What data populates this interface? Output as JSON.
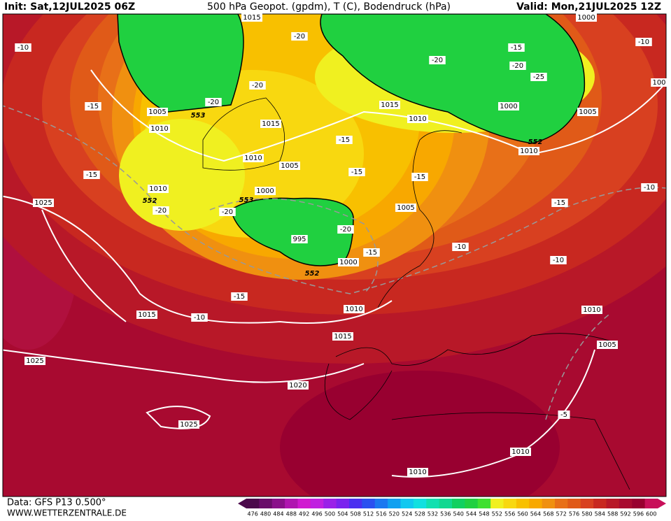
{
  "header": {
    "init": "Init: Sat,12JUL2025 06Z",
    "title": "500 hPa Geopot. (gpdm), T (C), Bodendruck (hPa)",
    "valid": "Valid: Mon,21JUL2025 12Z"
  },
  "footer": {
    "source": "Data: GFS P13 0.500°",
    "site": "WWW.WETTERZENTRALE.DE"
  },
  "colorbar": {
    "labels": [
      476,
      480,
      484,
      488,
      492,
      496,
      500,
      504,
      508,
      512,
      516,
      520,
      524,
      528,
      532,
      536,
      540,
      544,
      548,
      552,
      556,
      560,
      564,
      568,
      572,
      576,
      580,
      584,
      588,
      592,
      596,
      600
    ],
    "colors": [
      "#4b0a4b",
      "#6a0d6a",
      "#8a108a",
      "#b016b0",
      "#d01ad0",
      "#c020e0",
      "#9a20e8",
      "#7a22ee",
      "#4a30f0",
      "#2a50f0",
      "#1a78f0",
      "#10a0f0",
      "#10c8f0",
      "#10e0e0",
      "#10e0b0",
      "#10d890",
      "#10d060",
      "#20d040",
      "#40e030",
      "#f0f020",
      "#f8d810",
      "#f8c000",
      "#f8a800",
      "#f09010",
      "#e87018",
      "#e05a18",
      "#d84020",
      "#c82820",
      "#b81828",
      "#a80a30",
      "#980030",
      "#c8105a"
    ]
  },
  "map": {
    "labels": [
      "1015",
      "-20",
      "-10",
      "1000",
      "-10",
      "-15",
      "-20",
      "-20",
      "-25",
      "-20",
      "100",
      "-15",
      "1005",
      "553",
      "-20",
      "1015",
      "1000",
      "1005",
      "1010",
      "1015",
      "1010",
      "-15",
      "552",
      "1010",
      "1010",
      "1005",
      "-15",
      "-15",
      "-15",
      "1010",
      "1000",
      "552",
      "-20",
      "553",
      "-20",
      "1025",
      "1005",
      "-15",
      "-10",
      "995",
      "-20",
      "-15",
      "-10",
      "-10",
      "1000",
      "552",
      "-15",
      "-10",
      "1015",
      "1010",
      "1010",
      "1015",
      "1005",
      "1025",
      "1020",
      "-5",
      "1025",
      "1010",
      "1010"
    ]
  }
}
